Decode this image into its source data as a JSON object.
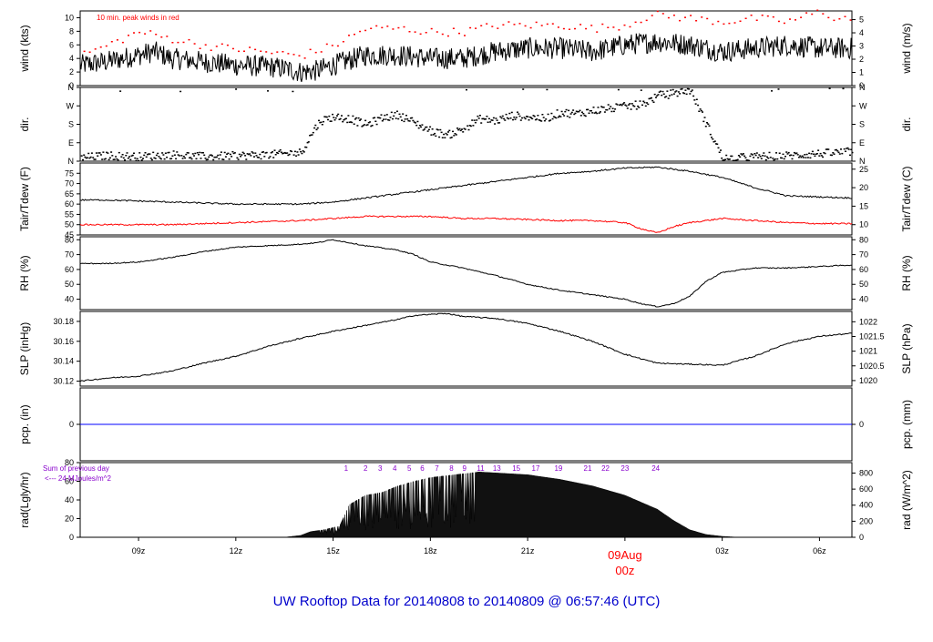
{
  "title": "UW Rooftop Data for 20140808  to  20140809 @ 06:57:46  (UTC)",
  "colors": {
    "title": "#0000cc",
    "peak": "#ff0000",
    "dew": "#ff0000",
    "pcp": "#0000ff",
    "hour": "#8800cc",
    "date": "#ff0000",
    "trace": "#000000"
  },
  "x_axis": {
    "ticks": [
      {
        "x": 9,
        "label": "09z"
      },
      {
        "x": 12,
        "label": "12z"
      },
      {
        "x": 15,
        "label": "15z"
      },
      {
        "x": 18,
        "label": "18z"
      },
      {
        "x": 21,
        "label": "21z"
      },
      {
        "x": 24,
        "label": "09Aug"
      },
      {
        "x": 27,
        "label": "03z"
      },
      {
        "x": 30,
        "label": "06z"
      }
    ],
    "date_label": "09Aug",
    "date_sub": "00z",
    "range": [
      7.2,
      31
    ]
  },
  "chart_data": [
    {
      "type": "line",
      "panel": "wind",
      "ylabel": "wind (kts)",
      "y2label": "wind (m/s)",
      "annotation": "10 min. peak winds in red",
      "ylim": [
        0,
        11
      ],
      "yticks": [
        "0",
        "2",
        "4",
        "6",
        "8",
        "10"
      ],
      "y2ticks": [
        "0",
        "1",
        "2",
        "3",
        "4",
        "5"
      ],
      "y2conv": 0.5144,
      "series": [
        {
          "key": "wind",
          "x": [
            7.2,
            8,
            9,
            9.5,
            10,
            11,
            12,
            13,
            13.5,
            14,
            14.5,
            15,
            16,
            17,
            18,
            19,
            20,
            21,
            22,
            23,
            24,
            25,
            26,
            27,
            28,
            29,
            30,
            31
          ],
          "values": [
            3,
            3.5,
            4.5,
            5,
            4,
            3.5,
            3,
            2.8,
            2.5,
            2,
            2.2,
            3,
            4.5,
            4.5,
            4,
            4,
            5,
            5.5,
            5.5,
            5,
            6,
            6.5,
            6,
            5,
            5.5,
            6,
            5.5,
            5.5
          ]
        },
        {
          "key": "peak",
          "x": [
            7.5,
            8.5,
            9,
            9.5,
            10,
            11,
            12,
            13,
            14,
            15,
            16,
            17,
            18,
            19,
            20,
            21,
            22,
            23,
            24,
            24.5,
            25,
            26,
            27,
            28,
            29,
            30,
            30.5,
            31
          ],
          "values": [
            5,
            7,
            8,
            7.5,
            7,
            6,
            5.5,
            5,
            4.5,
            6,
            8.5,
            8.5,
            8,
            8,
            9,
            9,
            9,
            8.5,
            9,
            10,
            10.5,
            10,
            9.5,
            10,
            9.5,
            11,
            10,
            10
          ]
        }
      ]
    },
    {
      "type": "scatter",
      "panel": "dir",
      "ylabel": "dir.",
      "y2label": "dir.",
      "yticks": [
        "N",
        "E",
        "S",
        "W",
        "N"
      ],
      "ylim": [
        0,
        360
      ],
      "x": [
        7.2,
        8,
        9,
        10,
        11,
        12,
        13,
        14,
        14.4,
        14.6,
        15,
        15.5,
        16,
        16.5,
        17,
        17.5,
        18,
        18.5,
        19,
        19.5,
        20,
        20.5,
        21,
        21.5,
        22,
        22.5,
        23,
        23.5,
        24,
        24.5,
        25,
        26,
        27,
        28,
        29,
        30,
        31
      ],
      "values": [
        20,
        30,
        25,
        35,
        25,
        30,
        35,
        45,
        160,
        200,
        220,
        210,
        180,
        215,
        230,
        190,
        150,
        130,
        160,
        210,
        200,
        225,
        220,
        210,
        240,
        235,
        250,
        260,
        270,
        280,
        320,
        350,
        15,
        25,
        30,
        40,
        50
      ]
    },
    {
      "type": "line",
      "panel": "temp",
      "ylabel": "Tair/Tdew (F)",
      "y2label": "Tair/Tdew (C)",
      "ylim": [
        45,
        80
      ],
      "yticks": [
        "45",
        "50",
        "55",
        "60",
        "65",
        "70",
        "75"
      ],
      "y2ticks": [
        "10",
        "15",
        "20",
        "25"
      ],
      "series": [
        {
          "key": "Tair",
          "x": [
            7.2,
            8,
            9,
            10,
            11,
            12,
            13,
            14,
            15,
            16,
            17,
            18,
            19,
            20,
            21,
            22,
            23,
            24,
            25,
            26,
            27,
            28,
            29,
            30,
            31
          ],
          "values": [
            62,
            62,
            61.5,
            61,
            60.5,
            60,
            60,
            60,
            61,
            63,
            65,
            67,
            69,
            71,
            73,
            75,
            76,
            77.5,
            78,
            76,
            73,
            68,
            64,
            63.5,
            63
          ]
        },
        {
          "key": "Tdew",
          "x": [
            7.2,
            8,
            9,
            10,
            11,
            12,
            13,
            14,
            15,
            16,
            17,
            18,
            19,
            20,
            21,
            22,
            23,
            24,
            24.5,
            25,
            25.5,
            26,
            27,
            28,
            29,
            30,
            31
          ],
          "values": [
            50,
            50,
            50,
            50,
            50.5,
            51,
            51.5,
            52,
            53,
            54,
            54,
            54,
            53,
            53,
            52.5,
            52,
            52,
            51,
            48,
            46,
            49,
            51,
            53,
            52,
            51,
            50.5,
            50.5
          ]
        }
      ]
    },
    {
      "type": "line",
      "panel": "rh",
      "ylabel": "RH (%)",
      "y2label": "RH (%)",
      "ylim": [
        33,
        82
      ],
      "yticks": [
        "40",
        "50",
        "60",
        "70",
        "80"
      ],
      "y2ticks": [
        "40",
        "50",
        "60",
        "70",
        "80"
      ],
      "series": [
        {
          "key": "RH",
          "x": [
            7.2,
            8,
            9,
            10,
            11,
            12,
            13,
            14,
            14.5,
            15,
            16,
            17,
            17.5,
            18,
            19,
            20,
            21,
            22,
            23,
            24,
            24.5,
            25,
            25.5,
            26,
            26.5,
            27,
            28,
            29,
            30,
            31
          ],
          "values": [
            64,
            64,
            65,
            68,
            72,
            75,
            76,
            77,
            78,
            80,
            76,
            73,
            70,
            65,
            61,
            56,
            50,
            46,
            43,
            40,
            37,
            35,
            37,
            42,
            52,
            58,
            61,
            61,
            62,
            63
          ]
        }
      ]
    },
    {
      "type": "line",
      "panel": "slp",
      "ylabel": "SLP (inHg)",
      "y2label": "SLP (hPa)",
      "ylim": [
        30.115,
        30.19
      ],
      "yticks": [
        "30.12",
        "30.14",
        "30.16",
        "30.18"
      ],
      "y2ticks": [
        "1020",
        "1020.5",
        "1021",
        "1021.5",
        "1022"
      ],
      "y2conv": 33.8639,
      "series": [
        {
          "key": "SLP",
          "x": [
            7.2,
            8,
            9,
            10,
            11,
            12,
            13,
            14,
            15,
            16,
            17,
            17.5,
            18,
            18.5,
            19,
            20,
            21,
            22,
            23,
            24,
            25,
            26,
            27,
            28,
            29,
            30,
            31
          ],
          "values": [
            30.12,
            30.123,
            30.125,
            30.13,
            30.138,
            30.145,
            30.155,
            30.163,
            30.17,
            30.176,
            30.182,
            30.186,
            30.187,
            30.188,
            30.185,
            30.183,
            30.178,
            30.17,
            30.16,
            30.147,
            30.138,
            30.137,
            30.136,
            30.145,
            30.158,
            30.165,
            30.168
          ]
        }
      ]
    },
    {
      "type": "line",
      "panel": "pcp",
      "ylabel": "pcp. (in)",
      "y2label": "pcp. (mm)",
      "ylim": [
        -0.1,
        0.1
      ],
      "yticks": [
        "0"
      ],
      "y2ticks": [
        "0"
      ],
      "series": [
        {
          "key": "pcp",
          "x": [
            7.2,
            31
          ],
          "values": [
            0,
            0
          ]
        }
      ]
    },
    {
      "type": "area",
      "panel": "rad",
      "ylabel": "rad(Lgly/hr)",
      "y2label": "rad (W/m^2)",
      "ylim": [
        0,
        80
      ],
      "yticks": [
        "0",
        "20",
        "40",
        "60",
        "80"
      ],
      "y2ticks": [
        "0",
        "200",
        "400",
        "600",
        "800"
      ],
      "y2conv": 11.63,
      "annotation1": "Sum of previous day",
      "annotation2": "<--- 24 MJoules/m^2",
      "hour_labels": [
        "1",
        "2",
        "3",
        "4",
        "5",
        "6",
        "7",
        "8",
        "9",
        "11",
        "13",
        "15",
        "17",
        "19",
        "21",
        "22",
        "23",
        "24"
      ],
      "hour_x": [
        15.4,
        16,
        16.45,
        16.9,
        17.35,
        17.75,
        18.2,
        18.65,
        19.05,
        19.55,
        20.05,
        20.65,
        21.25,
        21.95,
        22.85,
        23.4,
        24,
        24.95
      ],
      "series": [
        {
          "key": "rad",
          "x": [
            7.2,
            13.5,
            14,
            14.3,
            14.7,
            15.2,
            15.5,
            16,
            16.5,
            17,
            17.5,
            18,
            18.5,
            19,
            19.5,
            20,
            21,
            22,
            23,
            24,
            25,
            25.5,
            26,
            26.5,
            27,
            27.5,
            31
          ],
          "values": [
            0,
            0,
            2,
            6,
            8,
            12,
            35,
            45,
            48,
            55,
            60,
            64,
            66,
            68,
            70,
            69,
            67,
            62,
            55,
            45,
            30,
            18,
            8,
            3,
            1,
            0,
            0
          ]
        }
      ]
    }
  ]
}
